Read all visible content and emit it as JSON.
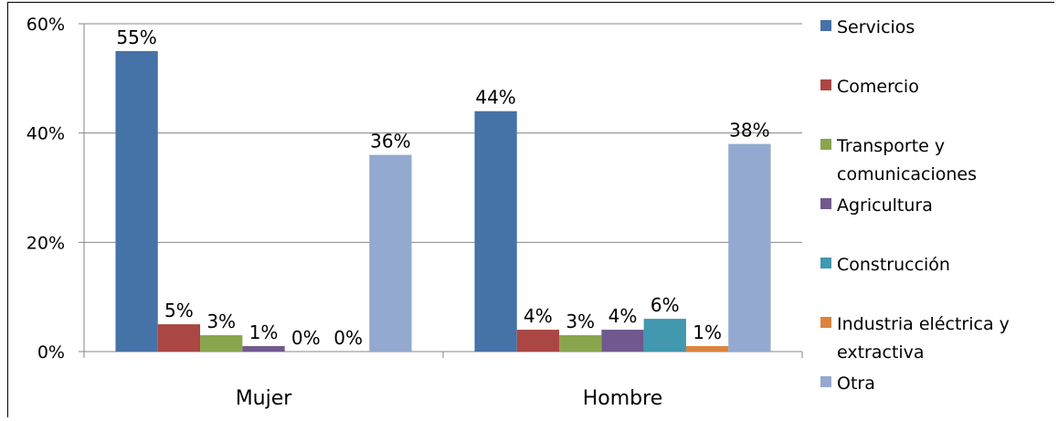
{
  "chart_data": {
    "type": "bar",
    "title": "",
    "xlabel": "",
    "ylabel": "",
    "ylim": [
      0,
      60
    ],
    "yticks": [
      0,
      20,
      40,
      60
    ],
    "ytick_labels": [
      "0%",
      "20%",
      "40%",
      "60%"
    ],
    "grid": true,
    "legend_position": "right",
    "categories": [
      "Mujer",
      "Hombre"
    ],
    "series": [
      {
        "name": "Servicios",
        "color": "#4572A7",
        "values": [
          55,
          44
        ],
        "labels": [
          "55%",
          "44%"
        ]
      },
      {
        "name": "Comercio",
        "color": "#AA4643",
        "values": [
          5,
          4
        ],
        "labels": [
          "5%",
          "4%"
        ]
      },
      {
        "name": "Transporte y comunicaciones",
        "legend_lines": [
          "Transporte y",
          "comunicaciones"
        ],
        "color": "#89A54E",
        "values": [
          3,
          3
        ],
        "labels": [
          "3%",
          "3%"
        ]
      },
      {
        "name": "Agricultura",
        "color": "#71588F",
        "values": [
          1,
          4
        ],
        "labels": [
          "1%",
          "4%"
        ]
      },
      {
        "name": "Construcción",
        "color": "#4198AF",
        "values": [
          0,
          6
        ],
        "labels": [
          "0%",
          "6%"
        ]
      },
      {
        "name": "Industria eléctrica y extractiva",
        "legend_lines": [
          "Industria eléctrica y",
          "extractiva"
        ],
        "color": "#DB843D",
        "values": [
          0,
          1
        ],
        "labels": [
          "0%",
          "1%"
        ]
      },
      {
        "name": "Otra",
        "color": "#93A9CF",
        "values": [
          36,
          38
        ],
        "labels": [
          "36%",
          "38%"
        ]
      }
    ]
  }
}
